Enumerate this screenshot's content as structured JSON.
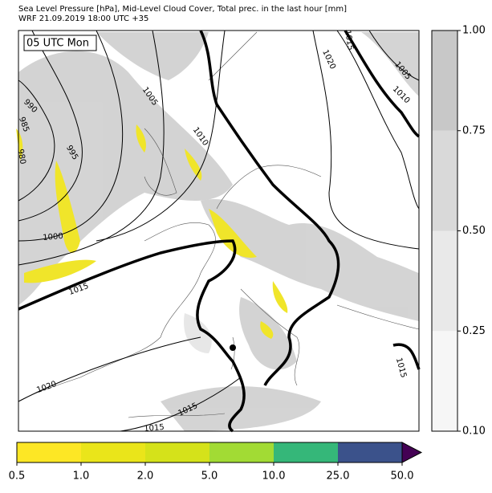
{
  "header": {
    "title": "Sea Level Pressure [hPa], Mid-Level Cloud Cover, Total prec. in the last hour [mm]",
    "subtitle": "WRF 21.09.2019 18:00 UTC +35"
  },
  "map": {
    "time_label": "05 UTC Mon",
    "isobar_labels": [
      990,
      985,
      980,
      995,
      1005,
      1010,
      1000,
      1015,
      1020,
      1015,
      1015,
      1020,
      1015,
      1005,
      1010,
      1015
    ]
  },
  "cloud_colorbar": {
    "ticks": [
      {
        "value": 0.1,
        "label": "0.10"
      },
      0.25,
      {
        "value": 0.5,
        "label": "0.50"
      },
      0.75,
      {
        "value": 1,
        "label": "1.00"
      }
    ],
    "colors": [
      "#f6f6f6",
      "#e9e9e9",
      "#d9d9d9",
      "#c8c8c8"
    ]
  },
  "precip_colorbar": {
    "ticks": [
      0.5,
      {
        "value": 1,
        "label": "1.0"
      },
      {
        "value": 2,
        "label": "2.0"
      },
      {
        "value": 5,
        "label": "5.0"
      },
      {
        "value": 10,
        "label": "10.0"
      },
      {
        "value": 25,
        "label": "25.0"
      },
      {
        "value": 50,
        "label": "50.0"
      }
    ],
    "colors": [
      "#fde725",
      "#eae51a",
      "#d5e21a",
      "#a2db34",
      "#35b779",
      "#3b528b",
      "#440154"
    ]
  }
}
